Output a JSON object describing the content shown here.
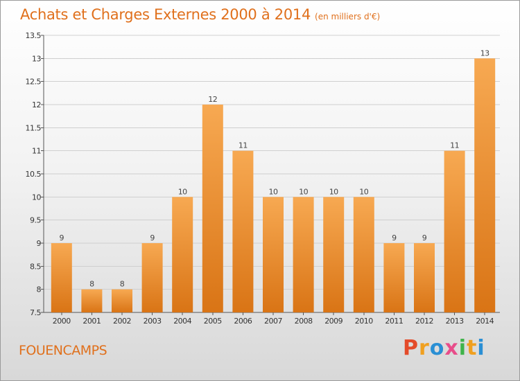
{
  "header": {
    "title": "Achats et Charges Externes 2000 à 2014",
    "unit": "(en milliers d'€)"
  },
  "footer": {
    "location": "FOUENCAMPS",
    "brand": "Proxiti"
  },
  "colors": {
    "title": "#e0701c",
    "bar_top": "#f7a952",
    "bar_bottom": "#d97415",
    "grid": "#cfcfcf",
    "brand_letters": [
      "#e44b2a",
      "#f0a020",
      "#2a8fd4",
      "#e84d8a",
      "#3fb34a",
      "#f0a020",
      "#2a8fd4"
    ]
  },
  "chart_data": {
    "type": "bar",
    "title": "Achats et Charges Externes 2000 à 2014",
    "subtitle": "(en milliers d'€)",
    "categories": [
      "2000",
      "2001",
      "2002",
      "2003",
      "2004",
      "2005",
      "2006",
      "2007",
      "2008",
      "2009",
      "2010",
      "2011",
      "2012",
      "2013",
      "2014"
    ],
    "values": [
      9,
      8,
      8,
      9,
      10,
      12,
      11,
      10,
      10,
      10,
      10,
      9,
      9,
      11,
      13
    ],
    "data_labels": [
      "9",
      "8",
      "8",
      "9",
      "10",
      "12",
      "11",
      "10",
      "10",
      "10",
      "10",
      "9",
      "9",
      "11",
      "13"
    ],
    "ylim": [
      7.5,
      13.5
    ],
    "yticks": [
      7.5,
      8,
      8.5,
      9,
      9.5,
      10,
      10.5,
      11,
      11.5,
      12,
      12.5,
      13,
      13.5
    ],
    "ytick_labels": [
      "7.5",
      "8",
      "8.5",
      "9",
      "9.5",
      "10",
      "10.5",
      "11",
      "11.5",
      "12",
      "12.5",
      "13",
      "13.5"
    ],
    "grid": true,
    "legend": false
  }
}
